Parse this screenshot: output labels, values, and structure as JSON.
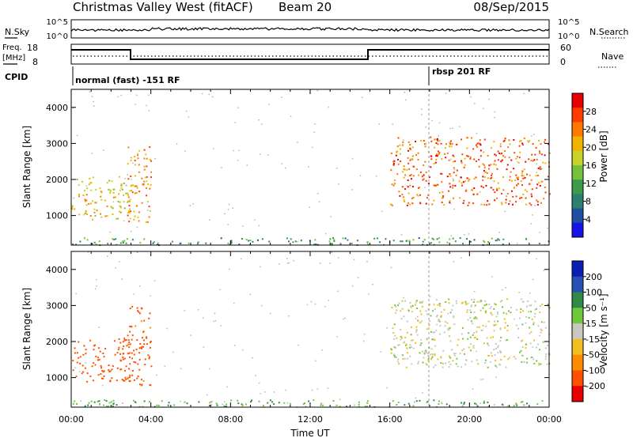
{
  "header": {
    "title": "Christmas Valley West (fitACF)",
    "beam": "Beam 20",
    "date": "08/Sep/2015"
  },
  "param_panels": {
    "nsky_label": "N.Sky",
    "nsearch_label": "N.Search",
    "nsky_ticks": [
      "10^5",
      "10^0"
    ],
    "nsearch_ticks": [
      "10^5",
      "10^0"
    ],
    "freq_label_1": "Freq.",
    "freq_label_2": "[MHz]",
    "freq_ticks": [
      "18",
      "8"
    ],
    "nave_label": "Nave",
    "nave_ticks": [
      "60",
      "0"
    ],
    "cpid_label": "CPID",
    "cpid_segments": [
      "normal (fast) -151 RF",
      "rbsp 201 RF"
    ]
  },
  "colorbars": {
    "power": {
      "label": "Power [dB]",
      "ticks": [
        "28",
        "24",
        "20",
        "16",
        "12",
        "8",
        "4"
      ],
      "colors": [
        "#1414e6",
        "#1f4fa0",
        "#2e7f6e",
        "#3c9a4a",
        "#74c23c",
        "#c8d22a",
        "#f0b400",
        "#ff7800",
        "#ff3c00",
        "#e60000"
      ]
    },
    "velocity": {
      "label": "Velocity [m s⁻¹]",
      "ticks": [
        "200",
        "100",
        "50",
        "15",
        "-15",
        "-50",
        "-100",
        "-200"
      ],
      "colors": [
        "#0a1eb4",
        "#2850b4",
        "#2e8a46",
        "#70c83c",
        "#c8c8c0",
        "#f0c020",
        "#ff8c00",
        "#ff5000",
        "#e60000"
      ]
    }
  },
  "chart_data": [
    {
      "type": "heatmap",
      "name": "power",
      "ylabel": "Slant Range [km]",
      "xlabel": "Time UT",
      "xlim_hours": [
        0,
        24
      ],
      "ylim_km": [
        180,
        4500
      ],
      "xticks": [
        "00:00",
        "04:00",
        "08:00",
        "12:00",
        "16:00",
        "20:00",
        "00:00"
      ],
      "yticks": [
        "1000",
        "2000",
        "3000",
        "4000"
      ],
      "colorbar_range_db": [
        0,
        30
      ],
      "features": [
        {
          "time_range_h": [
            0.0,
            3.0
          ],
          "range_km": [
            900,
            2100
          ],
          "power_db": 18
        },
        {
          "time_range_h": [
            2.8,
            4.0
          ],
          "range_km": [
            800,
            3000
          ],
          "power_db": 22
        },
        {
          "time_range_h": [
            16.0,
            24.0
          ],
          "range_km": [
            1300,
            3200
          ],
          "power_db": 24
        },
        {
          "time_range_h": [
            0.0,
            24.0
          ],
          "range_km": [
            200,
            400
          ],
          "power_db": 10
        }
      ]
    },
    {
      "type": "heatmap",
      "name": "velocity",
      "ylabel": "Slant Range [km]",
      "xlabel": "Time UT",
      "xlim_hours": [
        0,
        24
      ],
      "ylim_km": [
        180,
        4500
      ],
      "xticks": [
        "00:00",
        "04:00",
        "08:00",
        "12:00",
        "16:00",
        "20:00",
        "00:00"
      ],
      "yticks": [
        "1000",
        "2000",
        "3000",
        "4000"
      ],
      "colorbar_range_ms": [
        -200,
        200
      ],
      "features": [
        {
          "time_range_h": [
            0.0,
            3.0
          ],
          "range_km": [
            900,
            2100
          ],
          "velocity_ms": -150
        },
        {
          "time_range_h": [
            2.8,
            4.0
          ],
          "range_km": [
            800,
            3000
          ],
          "velocity_ms": -120
        },
        {
          "time_range_h": [
            16.0,
            24.0
          ],
          "range_km": [
            1300,
            3200
          ],
          "velocity_ms": 0
        },
        {
          "time_range_h": [
            0.0,
            24.0
          ],
          "range_km": [
            200,
            400
          ],
          "velocity_ms": 40
        }
      ]
    }
  ]
}
